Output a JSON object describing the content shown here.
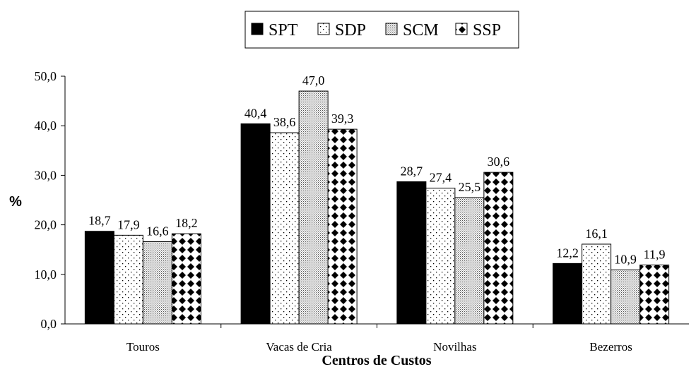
{
  "chart_data": {
    "type": "bar",
    "xlabel": "Centros de Custos",
    "ylabel": "%",
    "ylim": [
      0,
      50
    ],
    "yticks": [
      "0,0",
      "10,0",
      "20,0",
      "30,0",
      "40,0",
      "50,0"
    ],
    "ytick_values": [
      0,
      10,
      20,
      30,
      40,
      50
    ],
    "grid": false,
    "legend_position": "top-center",
    "categories": [
      "Touros",
      "Vacas de Cria",
      "Novilhas",
      "Bezerros"
    ],
    "series": [
      {
        "name": "SPT",
        "values": [
          18.7,
          40.4,
          28.7,
          12.2
        ],
        "labels": [
          "18,7",
          "40,4",
          "28,7",
          "12,2"
        ],
        "pattern": "solid-black"
      },
      {
        "name": "SDP",
        "values": [
          17.9,
          38.6,
          27.4,
          16.1
        ],
        "labels": [
          "17,9",
          "38,6",
          "27,4",
          "16,1"
        ],
        "pattern": "sparse-dots"
      },
      {
        "name": "SCM",
        "values": [
          16.6,
          47.0,
          25.5,
          10.9
        ],
        "labels": [
          "16,6",
          "47,0",
          "25,5",
          "10,9"
        ],
        "pattern": "dense-dots"
      },
      {
        "name": "SSP",
        "values": [
          18.2,
          39.3,
          30.6,
          11.9
        ],
        "labels": [
          "18,2",
          "39,3",
          "30,6",
          "11,9"
        ],
        "pattern": "diamonds"
      }
    ]
  }
}
